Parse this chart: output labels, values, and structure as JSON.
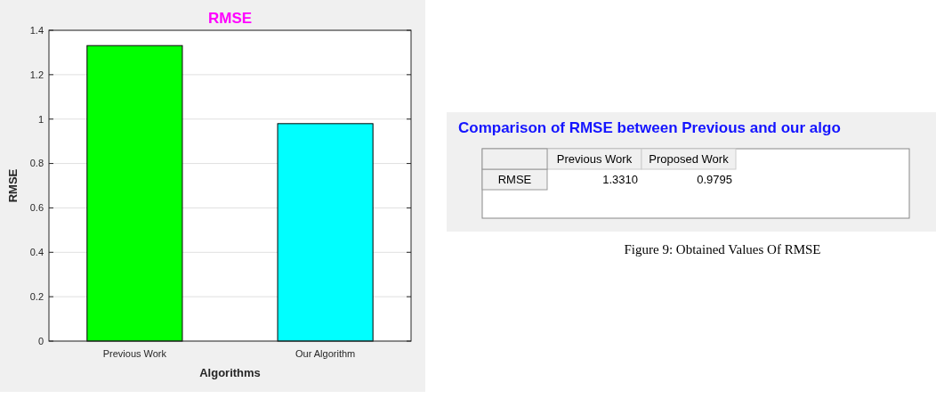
{
  "chart_data": [
    {
      "type": "bar",
      "title": "RMSE",
      "xlabel": "Algorithms",
      "ylabel": "RMSE",
      "categories": [
        "Previous Work",
        "Our Algorithm"
      ],
      "values": [
        1.331,
        0.9795
      ],
      "colors": [
        "#00ff00",
        "#00ffff"
      ],
      "ylim": [
        0,
        1.4
      ],
      "yticks": [
        0,
        0.2,
        0.4,
        0.6,
        0.8,
        1,
        1.2,
        1.4
      ],
      "grid": "y"
    },
    {
      "type": "other",
      "title": "Comparison of RMSE between Previous and our algo",
      "categories": [
        "Previous Work",
        "Proposed Work"
      ],
      "y_categories": [
        "RMSE"
      ],
      "cell_labels": [
        [
          "1.3310",
          "0.9795"
        ]
      ],
      "annotations": [
        "Figure 9: Obtained Values Of RMSE"
      ]
    }
  ]
}
